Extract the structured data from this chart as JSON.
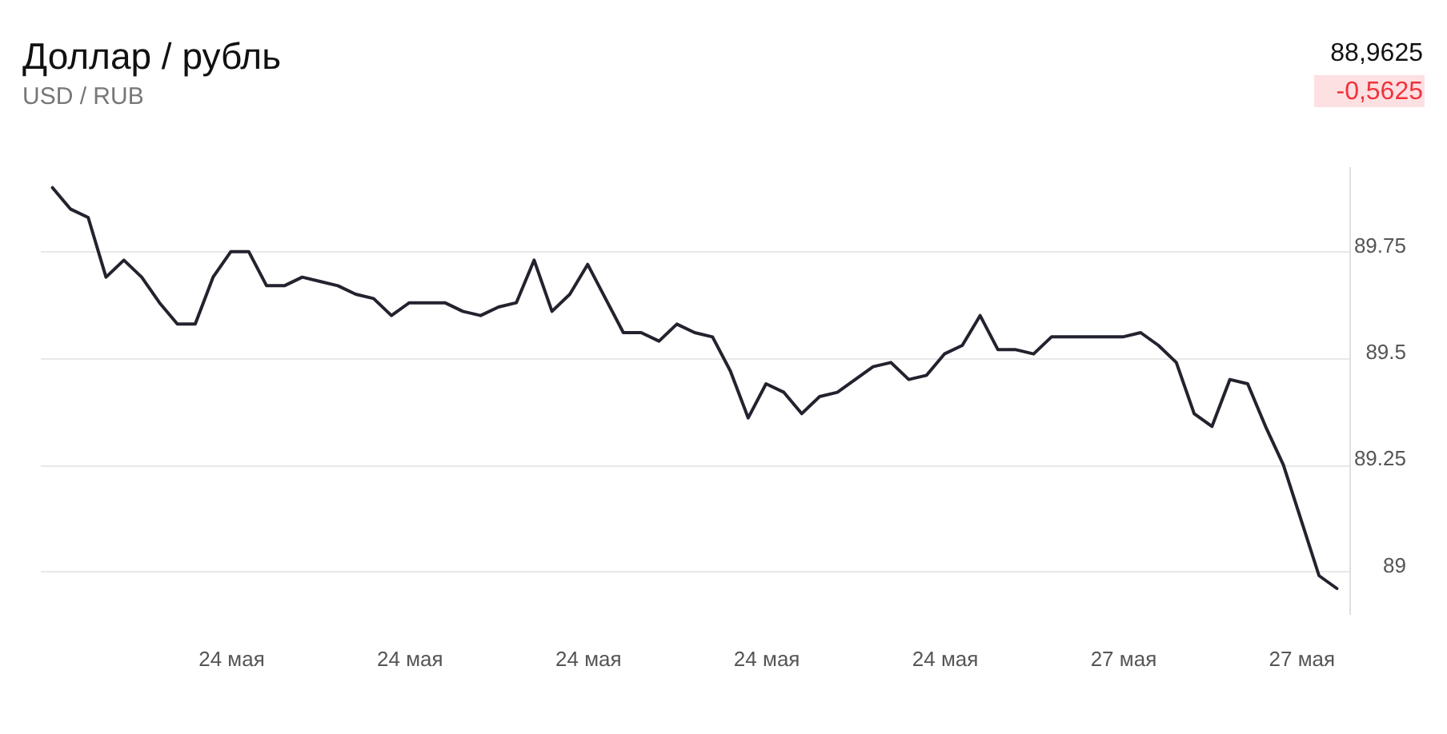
{
  "chart_data": {
    "type": "line",
    "title": "Доллар / рубль",
    "subtitle": "USD / RUB",
    "annotations": [
      "88,9625",
      "-0,5625"
    ],
    "categories": [
      null,
      null,
      null,
      null,
      null,
      null,
      null,
      null,
      null,
      null,
      "24 мая",
      null,
      null,
      null,
      null,
      null,
      null,
      null,
      null,
      null,
      "24 мая",
      null,
      null,
      null,
      null,
      null,
      null,
      null,
      null,
      null,
      "24 мая",
      null,
      null,
      null,
      null,
      null,
      null,
      null,
      null,
      null,
      "24 мая",
      null,
      null,
      null,
      null,
      null,
      null,
      null,
      null,
      null,
      "24 мая",
      null,
      null,
      null,
      null,
      null,
      null,
      null,
      null,
      null,
      "27 мая",
      null,
      null,
      null,
      null,
      null,
      null,
      null,
      null,
      null,
      "27 мая",
      null,
      null
    ],
    "series": [
      {
        "color": "#23232f",
        "values": [
          89.9,
          89.85,
          89.83,
          89.69,
          89.73,
          89.69,
          89.63,
          89.58,
          89.58,
          89.69,
          89.75,
          89.75,
          89.67,
          89.67,
          89.69,
          89.68,
          89.67,
          89.65,
          89.64,
          89.6,
          89.63,
          89.63,
          89.63,
          89.61,
          89.6,
          89.62,
          89.63,
          89.73,
          89.61,
          89.65,
          89.72,
          89.64,
          89.56,
          89.56,
          89.54,
          89.58,
          89.56,
          89.55,
          89.47,
          89.36,
          89.44,
          89.42,
          89.37,
          89.41,
          89.42,
          89.45,
          89.48,
          89.49,
          89.45,
          89.46,
          89.51,
          89.53,
          89.6,
          89.52,
          89.52,
          89.51,
          89.55,
          89.55,
          89.55,
          89.55,
          89.55,
          89.56,
          89.53,
          89.49,
          89.37,
          89.34,
          89.45,
          89.44,
          89.34,
          89.25,
          89.12,
          88.99,
          88.96
        ]
      }
    ],
    "ylim": [
      88.9,
      89.95
    ],
    "yticks": [
      89,
      89.25,
      89.5,
      89.75
    ],
    "grid": "y"
  }
}
